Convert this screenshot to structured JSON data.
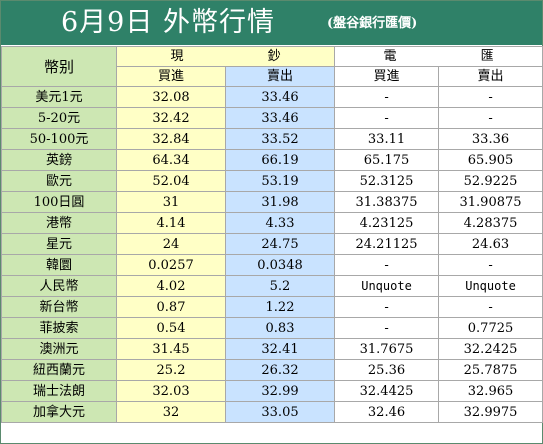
{
  "title": {
    "main": "6月9日 外幣行情",
    "source": "(盤谷銀行匯價)"
  },
  "header": {
    "currency": "幣别",
    "cash": "現 鈔",
    "wire": "電 匯",
    "buy": "買進",
    "sell": "賣出"
  },
  "rows": [
    {
      "name": "美元1元",
      "cash_buy": "32.08",
      "cash_sell": "33.46",
      "wire_buy": "-",
      "wire_sell": "-"
    },
    {
      "name": "5-20元",
      "cash_buy": "32.42",
      "cash_sell": "33.46",
      "wire_buy": "-",
      "wire_sell": "-"
    },
    {
      "name": "50-100元",
      "cash_buy": "32.84",
      "cash_sell": "33.52",
      "wire_buy": "33.11",
      "wire_sell": "33.36"
    },
    {
      "name": "英鎊",
      "cash_buy": "64.34",
      "cash_sell": "66.19",
      "wire_buy": "65.175",
      "wire_sell": "65.905"
    },
    {
      "name": "歐元",
      "cash_buy": "52.04",
      "cash_sell": "53.19",
      "wire_buy": "52.3125",
      "wire_sell": "52.9225"
    },
    {
      "name": "100日圓",
      "cash_buy": "31",
      "cash_sell": "31.98",
      "wire_buy": "31.38375",
      "wire_sell": "31.90875"
    },
    {
      "name": "港幣",
      "cash_buy": "4.14",
      "cash_sell": "4.33",
      "wire_buy": "4.23125",
      "wire_sell": "4.28375"
    },
    {
      "name": "星元",
      "cash_buy": "24",
      "cash_sell": "24.75",
      "wire_buy": "24.21125",
      "wire_sell": "24.63"
    },
    {
      "name": "韓圜",
      "cash_buy": "0.0257",
      "cash_sell": "0.0348",
      "wire_buy": "-",
      "wire_sell": "-"
    },
    {
      "name": "人民幣",
      "cash_buy": "4.02",
      "cash_sell": "5.2",
      "wire_buy": "Unquote",
      "wire_sell": "Unquote"
    },
    {
      "name": "新台幣",
      "cash_buy": "0.87",
      "cash_sell": "1.22",
      "wire_buy": "-",
      "wire_sell": "-"
    },
    {
      "name": "菲披索",
      "cash_buy": "0.54",
      "cash_sell": "0.83",
      "wire_buy": "-",
      "wire_sell": "0.7725"
    },
    {
      "name": "澳洲元",
      "cash_buy": "31.45",
      "cash_sell": "32.41",
      "wire_buy": "31.7675",
      "wire_sell": "32.2425"
    },
    {
      "name": "紐西蘭元",
      "cash_buy": "25.2",
      "cash_sell": "26.32",
      "wire_buy": "25.36",
      "wire_sell": "25.7875"
    },
    {
      "name": "瑞士法朗",
      "cash_buy": "32.03",
      "cash_sell": "32.99",
      "wire_buy": "32.4425",
      "wire_sell": "32.965"
    },
    {
      "name": "加拿大元",
      "cash_buy": "32",
      "cash_sell": "33.05",
      "wire_buy": "32.46",
      "wire_sell": "32.9975"
    }
  ],
  "colors": {
    "title_bg": "#2f8168",
    "name_col": "#cde7b3",
    "cash_col": "#ffffc6",
    "cash_sell_col": "#c9e3ff",
    "wire_col": "#ffffff"
  }
}
